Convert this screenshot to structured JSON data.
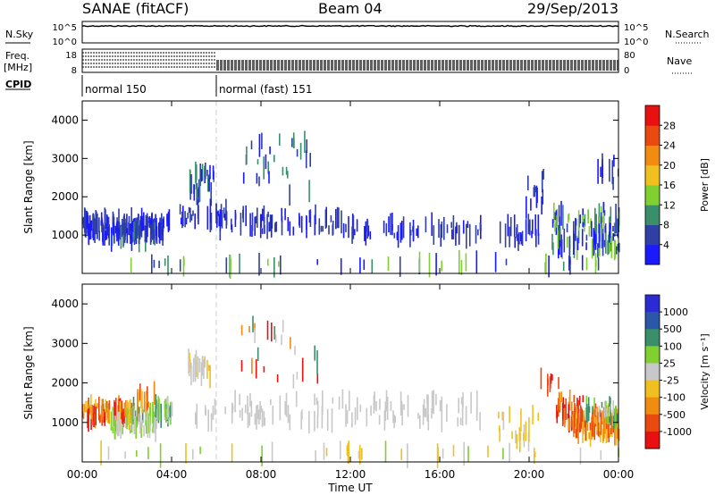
{
  "header": {
    "station": "SANAE (fitACF)",
    "beam": "Beam 04",
    "date": "29/Sep/2013"
  },
  "summary": {
    "nsky_label": "N.Sky",
    "nsearch_label": "N.Search",
    "freq_label_1": "Freq.",
    "freq_label_2": "[MHz]",
    "nave_label": "Nave",
    "cpid_label": "CPID",
    "noise_ticks": [
      "10^5",
      "10^0"
    ],
    "freq_ticks": [
      "18",
      "8"
    ],
    "nave_ticks": [
      "80",
      "0"
    ],
    "cpid_segments": [
      {
        "label": "normal 150",
        "start": 0,
        "end": 6
      },
      {
        "label": "normal (fast) 151",
        "start": 6,
        "end": 24
      }
    ]
  },
  "colors": {
    "power": [
      "#1a1aff",
      "#2f3fa3",
      "#3a8f6a",
      "#7fd030",
      "#f0c020",
      "#f08c10",
      "#e84a10",
      "#e81010"
    ],
    "velocity": [
      "#2b2bd4",
      "#2c57a8",
      "#3a8f6a",
      "#7fd030",
      "#c8c8c8",
      "#f0c020",
      "#f08c10",
      "#e84a10",
      "#e81010"
    ]
  },
  "chart_data": [
    {
      "type": "heatmap",
      "parameter": "Power",
      "ylabel": "Slant Range [km]",
      "yticks": [
        1000,
        2000,
        3000,
        4000
      ],
      "ylim": [
        0,
        4500
      ],
      "xlim": [
        0,
        24
      ],
      "colorbar_label": "Power [dB]",
      "colorbar_ticks": [
        "4",
        "8",
        "12",
        "16",
        "20",
        "24",
        "28"
      ],
      "blobs": [
        {
          "t0": 0.0,
          "t1": 3.9,
          "r0": 950,
          "r1": 1450,
          "n": 150,
          "c": [
            0,
            1
          ]
        },
        {
          "t0": 1.2,
          "t1": 3.3,
          "r0": 800,
          "r1": 1200,
          "n": 30,
          "c": [
            0,
            1,
            2
          ]
        },
        {
          "t0": 4.7,
          "t1": 5.9,
          "r0": 2050,
          "r1": 2700,
          "n": 30,
          "c": [
            0,
            1,
            2
          ]
        },
        {
          "t0": 4.2,
          "t1": 6.5,
          "r0": 1350,
          "r1": 1700,
          "n": 25,
          "c": [
            0,
            1
          ]
        },
        {
          "t0": 6.0,
          "t1": 12.0,
          "r0": 1100,
          "r1": 1550,
          "n": 70,
          "c": [
            0,
            1
          ]
        },
        {
          "t0": 12.0,
          "t1": 18.0,
          "r0": 950,
          "r1": 1300,
          "n": 60,
          "c": [
            0,
            1
          ]
        },
        {
          "t0": 18.5,
          "t1": 20.5,
          "r0": 800,
          "r1": 1300,
          "n": 25,
          "c": [
            0,
            1
          ]
        },
        {
          "t0": 19.8,
          "t1": 20.8,
          "r0": 1700,
          "r1": 2600,
          "n": 12,
          "c": [
            0,
            1
          ]
        },
        {
          "t0": 21.0,
          "t1": 24.0,
          "r0": 600,
          "r1": 1600,
          "n": 120,
          "c": [
            0,
            1,
            2,
            3
          ]
        },
        {
          "t0": 22.5,
          "t1": 24.0,
          "r0": 2300,
          "r1": 3000,
          "n": 10,
          "c": [
            0,
            1
          ]
        },
        {
          "t0": 7.0,
          "t1": 10.5,
          "r0": 2000,
          "r1": 3500,
          "n": 30,
          "c": [
            0,
            1,
            2
          ]
        },
        {
          "t0": 0.0,
          "t1": 24.0,
          "r0": 150,
          "r1": 300,
          "n": 50,
          "c": [
            0,
            1,
            2,
            3
          ]
        }
      ]
    },
    {
      "type": "heatmap",
      "parameter": "Velocity",
      "ylabel": "Slant Range [km]",
      "xlabel": "Time UT",
      "xticks": [
        "00:00",
        "04:00",
        "08:00",
        "12:00",
        "16:00",
        "20:00",
        "00:00"
      ],
      "yticks": [
        1000,
        2000,
        3000,
        4000
      ],
      "ylim": [
        0,
        4500
      ],
      "xlim": [
        0,
        24
      ],
      "colorbar_label": "Velocity [m s⁻¹]",
      "colorbar_ticks": [
        "1000",
        "500",
        "100",
        "25",
        "-25",
        "-100",
        "-500",
        "-1000"
      ],
      "blobs": [
        {
          "t0": 0.0,
          "t1": 2.2,
          "r0": 1050,
          "r1": 1450,
          "n": 90,
          "c": [
            5,
            6,
            7,
            8
          ]
        },
        {
          "t0": 2.2,
          "t1": 4.0,
          "r0": 1100,
          "r1": 1450,
          "n": 50,
          "c": [
            3,
            2,
            4
          ]
        },
        {
          "t0": 1.2,
          "t1": 3.3,
          "r0": 780,
          "r1": 1100,
          "n": 40,
          "c": [
            3,
            4
          ]
        },
        {
          "t0": 2.3,
          "t1": 3.2,
          "r0": 1400,
          "r1": 1800,
          "n": 15,
          "c": [
            5,
            6,
            7
          ]
        },
        {
          "t0": 4.7,
          "t1": 5.9,
          "r0": 2100,
          "r1": 2600,
          "n": 25,
          "c": [
            5,
            4
          ]
        },
        {
          "t0": 5.0,
          "t1": 18.0,
          "r0": 1000,
          "r1": 1600,
          "n": 110,
          "c": [
            4
          ]
        },
        {
          "t0": 7.0,
          "t1": 10.5,
          "r0": 2000,
          "r1": 3500,
          "n": 25,
          "c": [
            8,
            6,
            4,
            2
          ]
        },
        {
          "t0": 18.5,
          "t1": 20.5,
          "r0": 500,
          "r1": 1300,
          "n": 20,
          "c": [
            4,
            5
          ]
        },
        {
          "t0": 20.5,
          "t1": 21.3,
          "r0": 1900,
          "r1": 2200,
          "n": 8,
          "c": [
            8,
            7
          ]
        },
        {
          "t0": 21.2,
          "t1": 22.4,
          "r0": 900,
          "r1": 1700,
          "n": 50,
          "c": [
            8,
            7,
            6
          ]
        },
        {
          "t0": 22.0,
          "t1": 24.0,
          "r0": 650,
          "r1": 1200,
          "n": 100,
          "c": [
            6,
            5,
            7
          ]
        },
        {
          "t0": 22.5,
          "t1": 24.0,
          "r0": 1100,
          "r1": 1500,
          "n": 25,
          "c": [
            3,
            2,
            4
          ]
        },
        {
          "t0": 0.0,
          "t1": 24.0,
          "r0": 150,
          "r1": 300,
          "n": 40,
          "c": [
            4,
            3,
            5
          ]
        }
      ]
    }
  ]
}
